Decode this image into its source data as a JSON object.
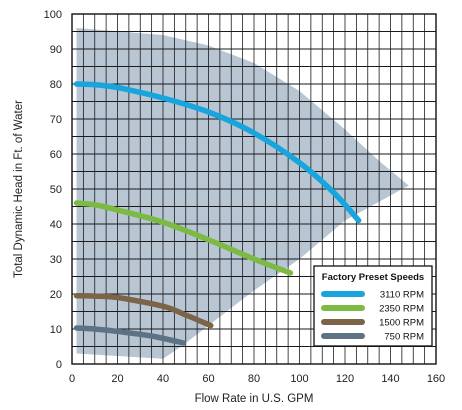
{
  "chart_data": {
    "type": "line",
    "xlabel": "Flow Rate in U.S. GPM",
    "ylabel": "Total Dynamic Head in Ft. of Water",
    "xlim": [
      0,
      160
    ],
    "ylim": [
      0,
      100
    ],
    "x_ticks": [
      0,
      20,
      40,
      60,
      80,
      100,
      120,
      140,
      160
    ],
    "y_ticks": [
      0,
      10,
      20,
      30,
      40,
      50,
      60,
      70,
      80,
      90,
      100
    ],
    "grid": "horizontal every 5 ft, vertical every 5 gpm",
    "legend_position": "bottom-right",
    "legend_title": "Factory Preset Speeds",
    "operating_region": {
      "color": "#b4c3d2",
      "boundary": [
        [
          2,
          96
        ],
        [
          40,
          94
        ],
        [
          60,
          91
        ],
        [
          80,
          86
        ],
        [
          100,
          78
        ],
        [
          120,
          67
        ],
        [
          135,
          58
        ],
        [
          148,
          51
        ],
        [
          120,
          41
        ],
        [
          100,
          30
        ],
        [
          80,
          21
        ],
        [
          60,
          11
        ],
        [
          48,
          5
        ],
        [
          40,
          1.5
        ],
        [
          2,
          3
        ]
      ]
    },
    "series": [
      {
        "name": "3110 RPM",
        "color": "#18a4dc",
        "points": [
          [
            2,
            80
          ],
          [
            10,
            79.8
          ],
          [
            20,
            79
          ],
          [
            40,
            76
          ],
          [
            60,
            72
          ],
          [
            80,
            66
          ],
          [
            100,
            57.5
          ],
          [
            115,
            49
          ],
          [
            126,
            41
          ]
        ]
      },
      {
        "name": "2350 RPM",
        "color": "#7cba44",
        "points": [
          [
            2,
            46
          ],
          [
            10,
            45.5
          ],
          [
            20,
            44
          ],
          [
            40,
            40.5
          ],
          [
            60,
            35.5
          ],
          [
            80,
            30
          ],
          [
            96,
            26
          ]
        ]
      },
      {
        "name": "1500 RPM",
        "color": "#7b6448",
        "points": [
          [
            2,
            19.5
          ],
          [
            10,
            19.4
          ],
          [
            20,
            19
          ],
          [
            40,
            16.5
          ],
          [
            50,
            14
          ],
          [
            61,
            11
          ]
        ]
      },
      {
        "name": "750 RPM",
        "color": "#5d7385",
        "points": [
          [
            2,
            10.3
          ],
          [
            10,
            10
          ],
          [
            20,
            9.3
          ],
          [
            35,
            8
          ],
          [
            49,
            6
          ]
        ]
      }
    ]
  }
}
